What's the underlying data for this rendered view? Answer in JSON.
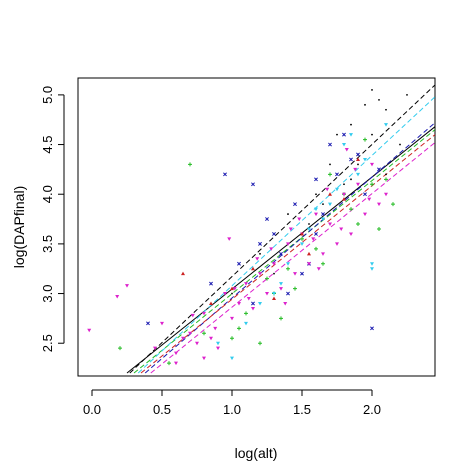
{
  "chart_data": {
    "type": "scatter",
    "xlabel": "log(alt)",
    "ylabel": "log(DAPfinal)",
    "xlim": [
      -0.1,
      2.45
    ],
    "ylim": [
      2.17,
      5.17
    ],
    "grid": false,
    "legend": "none",
    "x_ticks": [
      {
        "value": 0.0,
        "label": "0.0"
      },
      {
        "value": 0.5,
        "label": "0.5"
      },
      {
        "value": 1.0,
        "label": "1.0"
      },
      {
        "value": 1.5,
        "label": "1.5"
      },
      {
        "value": 2.0,
        "label": "2.0"
      }
    ],
    "y_ticks": [
      {
        "value": 2.5,
        "label": "2.5"
      },
      {
        "value": 3.0,
        "label": "3.0"
      },
      {
        "value": 3.5,
        "label": "3.5"
      },
      {
        "value": 4.0,
        "label": "4.0"
      },
      {
        "value": 4.5,
        "label": "4.5"
      },
      {
        "value": 5.0,
        "label": "5.0"
      }
    ],
    "series": [
      {
        "color": "#000000",
        "marker": "dot",
        "points": [
          [
            2.0,
            5.05
          ],
          [
            2.05,
            4.95
          ],
          [
            2.25,
            5.0
          ],
          [
            1.95,
            4.9
          ],
          [
            2.1,
            4.85
          ],
          [
            1.85,
            4.7
          ],
          [
            2.0,
            4.6
          ],
          [
            1.7,
            4.3
          ],
          [
            1.9,
            4.4
          ],
          [
            2.2,
            4.5
          ],
          [
            1.6,
            4.0
          ],
          [
            1.8,
            4.1
          ],
          [
            1.4,
            3.8
          ],
          [
            1.5,
            3.6
          ],
          [
            1.3,
            3.2
          ],
          [
            1.2,
            3.4
          ],
          [
            1.0,
            3.0
          ],
          [
            1.1,
            3.1
          ],
          [
            1.7,
            3.9
          ],
          [
            2.1,
            4.2
          ],
          [
            1.75,
            4.6
          ],
          [
            1.9,
            4.3
          ],
          [
            1.55,
            3.7
          ],
          [
            1.65,
            3.9
          ],
          [
            1.85,
            4.15
          ]
        ]
      },
      {
        "color": "#1a1ab0",
        "marker": "x",
        "points": [
          [
            0.95,
            4.2
          ],
          [
            1.15,
            4.1
          ],
          [
            1.4,
            3.0
          ],
          [
            1.6,
            4.15
          ],
          [
            1.2,
            3.5
          ],
          [
            1.5,
            3.2
          ],
          [
            1.9,
            4.4
          ],
          [
            1.8,
            4.6
          ],
          [
            1.65,
            3.8
          ],
          [
            2.0,
            2.65
          ],
          [
            1.3,
            3.6
          ],
          [
            1.75,
            4.2
          ],
          [
            1.45,
            3.9
          ],
          [
            1.55,
            3.3
          ],
          [
            1.95,
            4.0
          ],
          [
            0.85,
            3.1
          ],
          [
            1.05,
            3.3
          ],
          [
            0.4,
            2.7
          ],
          [
            1.85,
            4.35
          ],
          [
            1.7,
            4.5
          ],
          [
            1.35,
            3.4
          ],
          [
            1.15,
            2.9
          ],
          [
            2.05,
            4.25
          ],
          [
            1.25,
            3.75
          ],
          [
            1.6,
            3.6
          ]
        ]
      },
      {
        "color": "#22bb22",
        "marker": "plus",
        "points": [
          [
            0.7,
            4.3
          ],
          [
            0.2,
            2.45
          ],
          [
            1.0,
            2.55
          ],
          [
            1.2,
            2.5
          ],
          [
            1.4,
            3.25
          ],
          [
            1.6,
            3.45
          ],
          [
            1.8,
            4.0
          ],
          [
            2.0,
            4.1
          ],
          [
            2.1,
            4.15
          ],
          [
            1.9,
            3.7
          ],
          [
            2.15,
            3.9
          ],
          [
            1.5,
            3.55
          ],
          [
            1.1,
            2.8
          ],
          [
            0.8,
            2.6
          ],
          [
            1.7,
            4.2
          ],
          [
            1.3,
            3.0
          ],
          [
            0.55,
            2.3
          ],
          [
            1.25,
            3.15
          ],
          [
            1.85,
            3.85
          ],
          [
            1.65,
            3.3
          ],
          [
            1.05,
            2.65
          ],
          [
            1.45,
            3.05
          ],
          [
            1.95,
            4.55
          ],
          [
            2.05,
            3.65
          ],
          [
            1.35,
            2.75
          ]
        ]
      },
      {
        "color": "#33ccee",
        "marker": "triangle-down",
        "points": [
          [
            1.0,
            2.35
          ],
          [
            1.3,
            3.0
          ],
          [
            1.5,
            3.5
          ],
          [
            1.7,
            3.9
          ],
          [
            1.9,
            4.2
          ],
          [
            2.0,
            3.3
          ],
          [
            2.0,
            3.25
          ],
          [
            2.1,
            4.7
          ],
          [
            1.8,
            4.5
          ],
          [
            1.6,
            3.85
          ],
          [
            1.4,
            3.3
          ],
          [
            1.2,
            2.9
          ],
          [
            0.9,
            2.5
          ],
          [
            1.55,
            3.65
          ],
          [
            1.75,
            4.05
          ],
          [
            1.85,
            4.6
          ],
          [
            1.35,
            3.1
          ],
          [
            1.1,
            2.7
          ],
          [
            1.95,
            4.35
          ],
          [
            1.65,
            3.75
          ]
        ]
      },
      {
        "color": "#dd22cc",
        "marker": "triangle-down",
        "points": [
          [
            -0.02,
            2.63
          ],
          [
            0.18,
            2.97
          ],
          [
            0.25,
            3.08
          ],
          [
            0.45,
            2.45
          ],
          [
            0.5,
            2.7
          ],
          [
            0.6,
            2.4
          ],
          [
            0.7,
            2.6
          ],
          [
            0.75,
            2.5
          ],
          [
            0.8,
            2.8
          ],
          [
            0.85,
            2.55
          ],
          [
            0.9,
            2.45
          ],
          [
            0.95,
            3.0
          ],
          [
            1.0,
            2.75
          ],
          [
            1.05,
            2.9
          ],
          [
            1.1,
            3.1
          ],
          [
            1.15,
            2.85
          ],
          [
            1.2,
            3.2
          ],
          [
            1.25,
            3.0
          ],
          [
            1.3,
            3.3
          ],
          [
            1.35,
            3.05
          ],
          [
            1.4,
            3.5
          ],
          [
            1.45,
            3.2
          ],
          [
            1.5,
            3.6
          ],
          [
            1.55,
            3.3
          ],
          [
            1.6,
            3.8
          ],
          [
            1.65,
            3.4
          ],
          [
            1.7,
            3.7
          ],
          [
            1.75,
            3.5
          ],
          [
            1.8,
            4.0
          ],
          [
            1.85,
            3.6
          ],
          [
            1.9,
            4.1
          ],
          [
            1.95,
            3.8
          ],
          [
            2.0,
            4.3
          ],
          [
            2.05,
            3.9
          ],
          [
            2.1,
            4.0
          ],
          [
            0.6,
            2.3
          ],
          [
            0.72,
            2.78
          ],
          [
            0.88,
            2.65
          ],
          [
            1.02,
            3.05
          ],
          [
            1.12,
            2.95
          ],
          [
            1.28,
            3.45
          ],
          [
            1.38,
            2.9
          ],
          [
            1.48,
            3.75
          ],
          [
            1.58,
            3.55
          ],
          [
            1.68,
            4.05
          ],
          [
            1.78,
            3.65
          ],
          [
            1.88,
            4.25
          ],
          [
            1.98,
            3.95
          ],
          [
            0.8,
            2.35
          ],
          [
            0.98,
            3.55
          ],
          [
            1.42,
            3.65
          ],
          [
            1.62,
            3.25
          ],
          [
            1.82,
            4.45
          ],
          [
            0.65,
            2.55
          ],
          [
            1.18,
            3.35
          ]
        ]
      },
      {
        "color": "#cc2222",
        "marker": "triangle-up",
        "points": [
          [
            0.65,
            3.2
          ],
          [
            1.0,
            3.05
          ],
          [
            1.3,
            2.95
          ],
          [
            1.5,
            3.6
          ],
          [
            1.7,
            4.0
          ],
          [
            1.9,
            4.35
          ],
          [
            1.15,
            3.25
          ],
          [
            0.85,
            2.9
          ],
          [
            1.55,
            3.4
          ],
          [
            1.8,
            3.95
          ]
        ]
      }
    ],
    "fit_lines": [
      {
        "color": "#000000",
        "dash": "solid",
        "x": [
          0.25,
          2.45
        ],
        "y": [
          2.2,
          4.68
        ]
      },
      {
        "color": "#000000",
        "dash": "dashed",
        "x": [
          0.27,
          2.45
        ],
        "y": [
          2.2,
          5.1
        ]
      },
      {
        "color": "#22bb22",
        "dash": "dashed",
        "x": [
          0.3,
          2.45
        ],
        "y": [
          2.2,
          4.65
        ]
      },
      {
        "color": "#33ccee",
        "dash": "dashed",
        "x": [
          0.33,
          2.45
        ],
        "y": [
          2.2,
          4.98
        ]
      },
      {
        "color": "#1a1ab0",
        "dash": "dashed",
        "x": [
          0.38,
          2.45
        ],
        "y": [
          2.2,
          4.72
        ]
      },
      {
        "color": "#dd22cc",
        "dash": "dashed",
        "x": [
          0.42,
          2.45
        ],
        "y": [
          2.2,
          4.52
        ]
      },
      {
        "color": "#cc2222",
        "dash": "dashed",
        "x": [
          0.35,
          2.45
        ],
        "y": [
          2.2,
          4.6
        ]
      }
    ]
  }
}
